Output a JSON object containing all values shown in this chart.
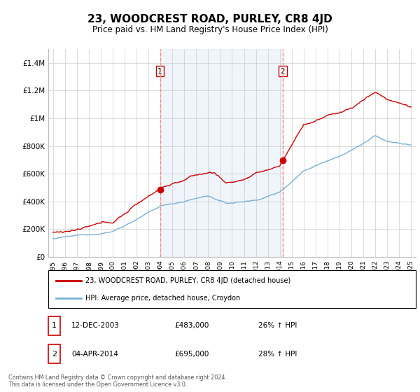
{
  "title": "23, WOODCREST ROAD, PURLEY, CR8 4JD",
  "subtitle": "Price paid vs. HM Land Registry's House Price Index (HPI)",
  "title_fontsize": 11,
  "subtitle_fontsize": 8.5,
  "ylim": [
    0,
    1500000
  ],
  "yticks": [
    0,
    200000,
    400000,
    600000,
    800000,
    1000000,
    1200000,
    1400000
  ],
  "ytick_labels": [
    "£0",
    "£200K",
    "£400K",
    "£600K",
    "£800K",
    "£1M",
    "£1.2M",
    "£1.4M"
  ],
  "background_color": "#ffffff",
  "grid_color": "#cccccc",
  "shade_color": "#ddeeff",
  "purchase1_date_num": 2003.96,
  "purchase1_price": 483000,
  "purchase2_date_num": 2014.25,
  "purchase2_price": 695000,
  "legend_entries": [
    "23, WOODCREST ROAD, PURLEY, CR8 4JD (detached house)",
    "HPI: Average price, detached house, Croydon"
  ],
  "table_rows": [
    [
      "1",
      "12-DEC-2003",
      "£483,000",
      "26% ↑ HPI"
    ],
    [
      "2",
      "04-APR-2014",
      "£695,000",
      "28% ↑ HPI"
    ]
  ],
  "footer_text": "Contains HM Land Registry data © Crown copyright and database right 2024.\nThis data is licensed under the Open Government Licence v3.0.",
  "line_color_red": "#cc0000",
  "line_color_blue": "#7ab0d4",
  "dot_color_red": "#cc0000",
  "vline_color": "#ff8888"
}
